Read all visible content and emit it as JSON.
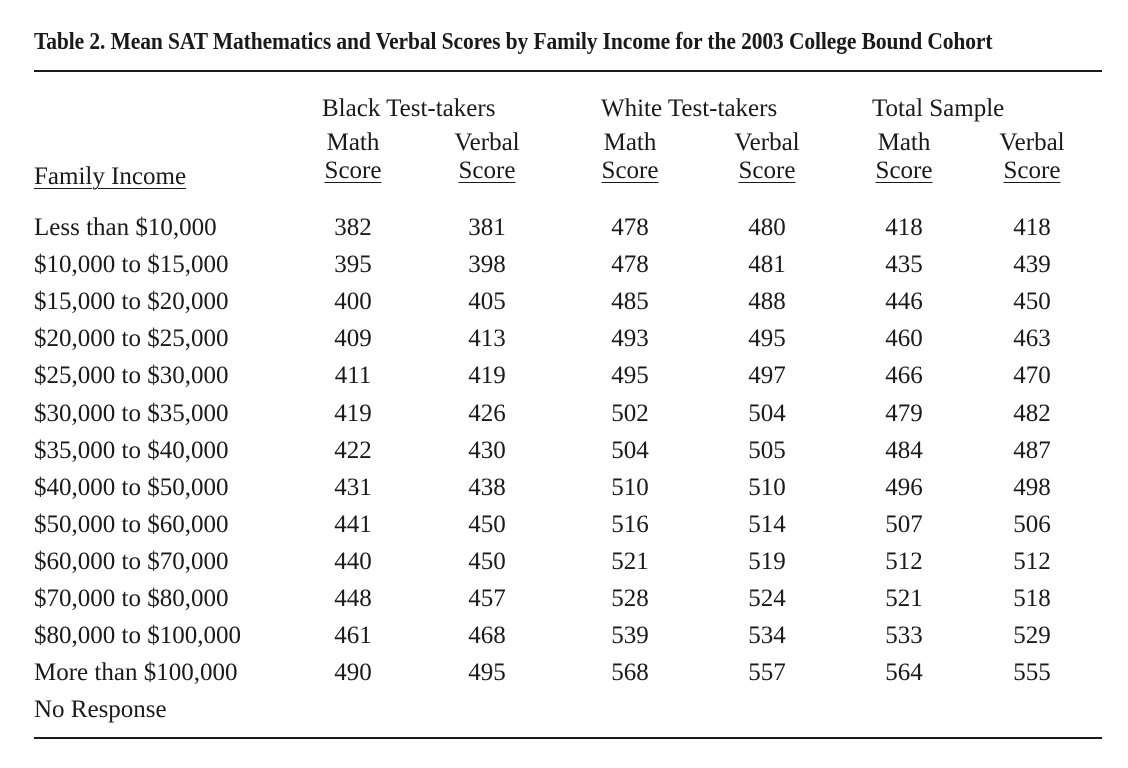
{
  "title": "Table 2. Mean SAT Mathematics and Verbal Scores by Family Income for the 2003 College Bound Cohort",
  "groups": [
    "Black Test-takers",
    "White Test-takers",
    "Total Sample"
  ],
  "columns": [
    {
      "line1": "Math",
      "line2": "Score"
    },
    {
      "line1": "Verbal",
      "line2": "Score"
    },
    {
      "line1": "Math",
      "line2": "Score"
    },
    {
      "line1": "Verbal",
      "line2": "Score"
    },
    {
      "line1": "Math",
      "line2": "Score"
    },
    {
      "line1": "Verbal",
      "line2": "Score"
    }
  ],
  "row_header": "Family Income",
  "rows": [
    {
      "label": "Less than $10,000",
      "values": [
        "382",
        "381",
        "478",
        "480",
        "418",
        "418"
      ]
    },
    {
      "label": "$10,000 to $15,000",
      "values": [
        "395",
        "398",
        "478",
        "481",
        "435",
        "439"
      ]
    },
    {
      "label": "$15,000 to $20,000",
      "values": [
        "400",
        "405",
        "485",
        "488",
        "446",
        "450"
      ]
    },
    {
      "label": "$20,000 to $25,000",
      "values": [
        "409",
        "413",
        "493",
        "495",
        "460",
        "463"
      ]
    },
    {
      "label": "$25,000 to $30,000",
      "values": [
        "411",
        "419",
        "495",
        "497",
        "466",
        "470"
      ]
    },
    {
      "label": "$30,000 to $35,000",
      "values": [
        "419",
        "426",
        "502",
        "504",
        "479",
        "482"
      ]
    },
    {
      "label": "$35,000 to $40,000",
      "values": [
        "422",
        "430",
        "504",
        "505",
        "484",
        "487"
      ]
    },
    {
      "label": "$40,000 to $50,000",
      "values": [
        "431",
        "438",
        "510",
        "510",
        "496",
        "498"
      ]
    },
    {
      "label": "$50,000 to $60,000",
      "values": [
        "441",
        "450",
        "516",
        "514",
        "507",
        "506"
      ]
    },
    {
      "label": "$60,000 to $70,000",
      "values": [
        "440",
        "450",
        "521",
        "519",
        "512",
        "512"
      ]
    },
    {
      "label": "$70,000 to $80,000",
      "values": [
        "448",
        "457",
        "528",
        "524",
        "521",
        "518"
      ]
    },
    {
      "label": "$80,000 to $100,000",
      "values": [
        "461",
        "468",
        "539",
        "534",
        "533",
        "529"
      ]
    },
    {
      "label": "More than $100,000",
      "values": [
        "490",
        "495",
        "568",
        "557",
        "564",
        "555"
      ]
    },
    {
      "label": "No Response",
      "values": []
    }
  ]
}
